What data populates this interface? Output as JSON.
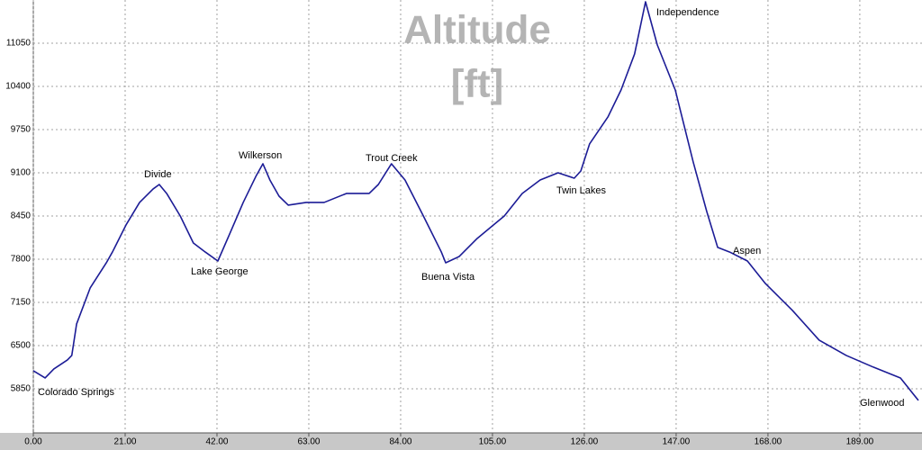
{
  "chart_data": {
    "type": "line",
    "title_lines": [
      "Altitude",
      "[ft]"
    ],
    "x": [
      0,
      2.7,
      4.7,
      7.8,
      8.8,
      9.9,
      13,
      16.7,
      18.1,
      21.2,
      24.3,
      27.4,
      28.8,
      30.5,
      33.6,
      36.6,
      39.3,
      42.2,
      44.9,
      48,
      51,
      52.5,
      54.1,
      56.2,
      58.3,
      62.4,
      66.5,
      71.6,
      76.8,
      78.9,
      81.9,
      85,
      89.2,
      93.3,
      94.3,
      97.4,
      101.5,
      107.7,
      111.8,
      115.9,
      120,
      123.7,
      125.2,
      127.2,
      131.4,
      134.4,
      137.5,
      140,
      142.7,
      146.8,
      150.9,
      154,
      156.5,
      159.2,
      163.3,
      167.4,
      173.6,
      179.7,
      185.9,
      192.1,
      198.3,
      202.4
    ],
    "series": [
      {
        "name": "Altitude",
        "color": "#1c1c96",
        "values": [
          6122,
          6013,
          6149,
          6284,
          6352,
          6826,
          7367,
          7746,
          7909,
          8315,
          8654,
          8857,
          8924,
          8789,
          8450,
          8044,
          7909,
          7773,
          8180,
          8654,
          9060,
          9236,
          8992,
          8748,
          8613,
          8654,
          8654,
          8789,
          8789,
          8924,
          9236,
          8992,
          8450,
          7909,
          7746,
          7841,
          8112,
          8450,
          8789,
          8992,
          9100,
          9019,
          9127,
          9534,
          9940,
          10346,
          10888,
          11673,
          11023,
          10346,
          9263,
          8518,
          7977,
          7909,
          7773,
          7435,
          7029,
          6582,
          6352,
          6176,
          6013,
          5675
        ]
      }
    ],
    "annotations": [
      "Colorado Springs",
      "Divide",
      "Lake George",
      "Wilkerson",
      "Trout Creek",
      "Buena Vista",
      "Twin Lakes",
      "Independence",
      "Aspen",
      "Glenwood"
    ],
    "xlim": [
      0,
      202.4
    ],
    "ylim": [
      5200,
      11700
    ],
    "xticks": [
      {
        "value": 0,
        "label": "0.00"
      },
      {
        "value": 21,
        "label": "21.00"
      },
      {
        "value": 42,
        "label": "42.00"
      },
      {
        "value": 63,
        "label": "63.00"
      },
      {
        "value": 84,
        "label": "84.00"
      },
      {
        "value": 105,
        "label": "105.00"
      },
      {
        "value": 126,
        "label": "126.00"
      },
      {
        "value": 147,
        "label": "147.00"
      },
      {
        "value": 168,
        "label": "168.00"
      },
      {
        "value": 189,
        "label": "189.00"
      }
    ],
    "yticks": [
      5850,
      6500,
      7150,
      7800,
      8450,
      9100,
      9750,
      10400,
      11050
    ],
    "grid": true
  }
}
